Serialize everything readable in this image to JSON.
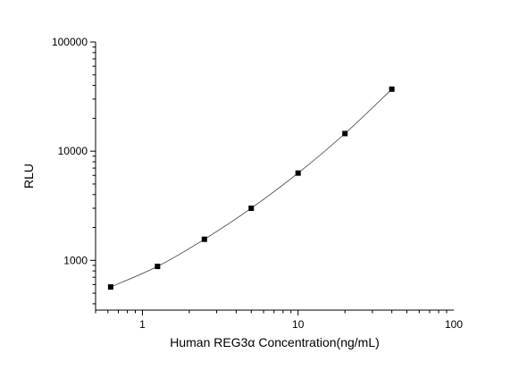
{
  "chart_data": {
    "type": "scatter",
    "xlabel": "Human REG3α  Concentration(ng/mL)",
    "ylabel": "RLU",
    "xscale": "log",
    "yscale": "log",
    "xlim": [
      0.5,
      100
    ],
    "ylim": [
      350,
      100000
    ],
    "x_ticks": [
      {
        "value": 1,
        "label": "1"
      },
      {
        "value": 10,
        "label": "10"
      },
      {
        "value": 100,
        "label": "100"
      }
    ],
    "y_ticks": [
      {
        "value": 1000,
        "label": "1000"
      },
      {
        "value": 10000,
        "label": "10000"
      },
      {
        "value": 100000,
        "label": "100000"
      }
    ],
    "grid": false,
    "legend": "none",
    "marker": "square",
    "fit_line": true,
    "color": "#000000",
    "line_color": "#555555",
    "series": [
      {
        "x": [
          0.625,
          1.25,
          2.5,
          5,
          10,
          20,
          40
        ],
        "y": [
          570,
          880,
          1560,
          3000,
          6300,
          14500,
          37000
        ]
      }
    ]
  }
}
